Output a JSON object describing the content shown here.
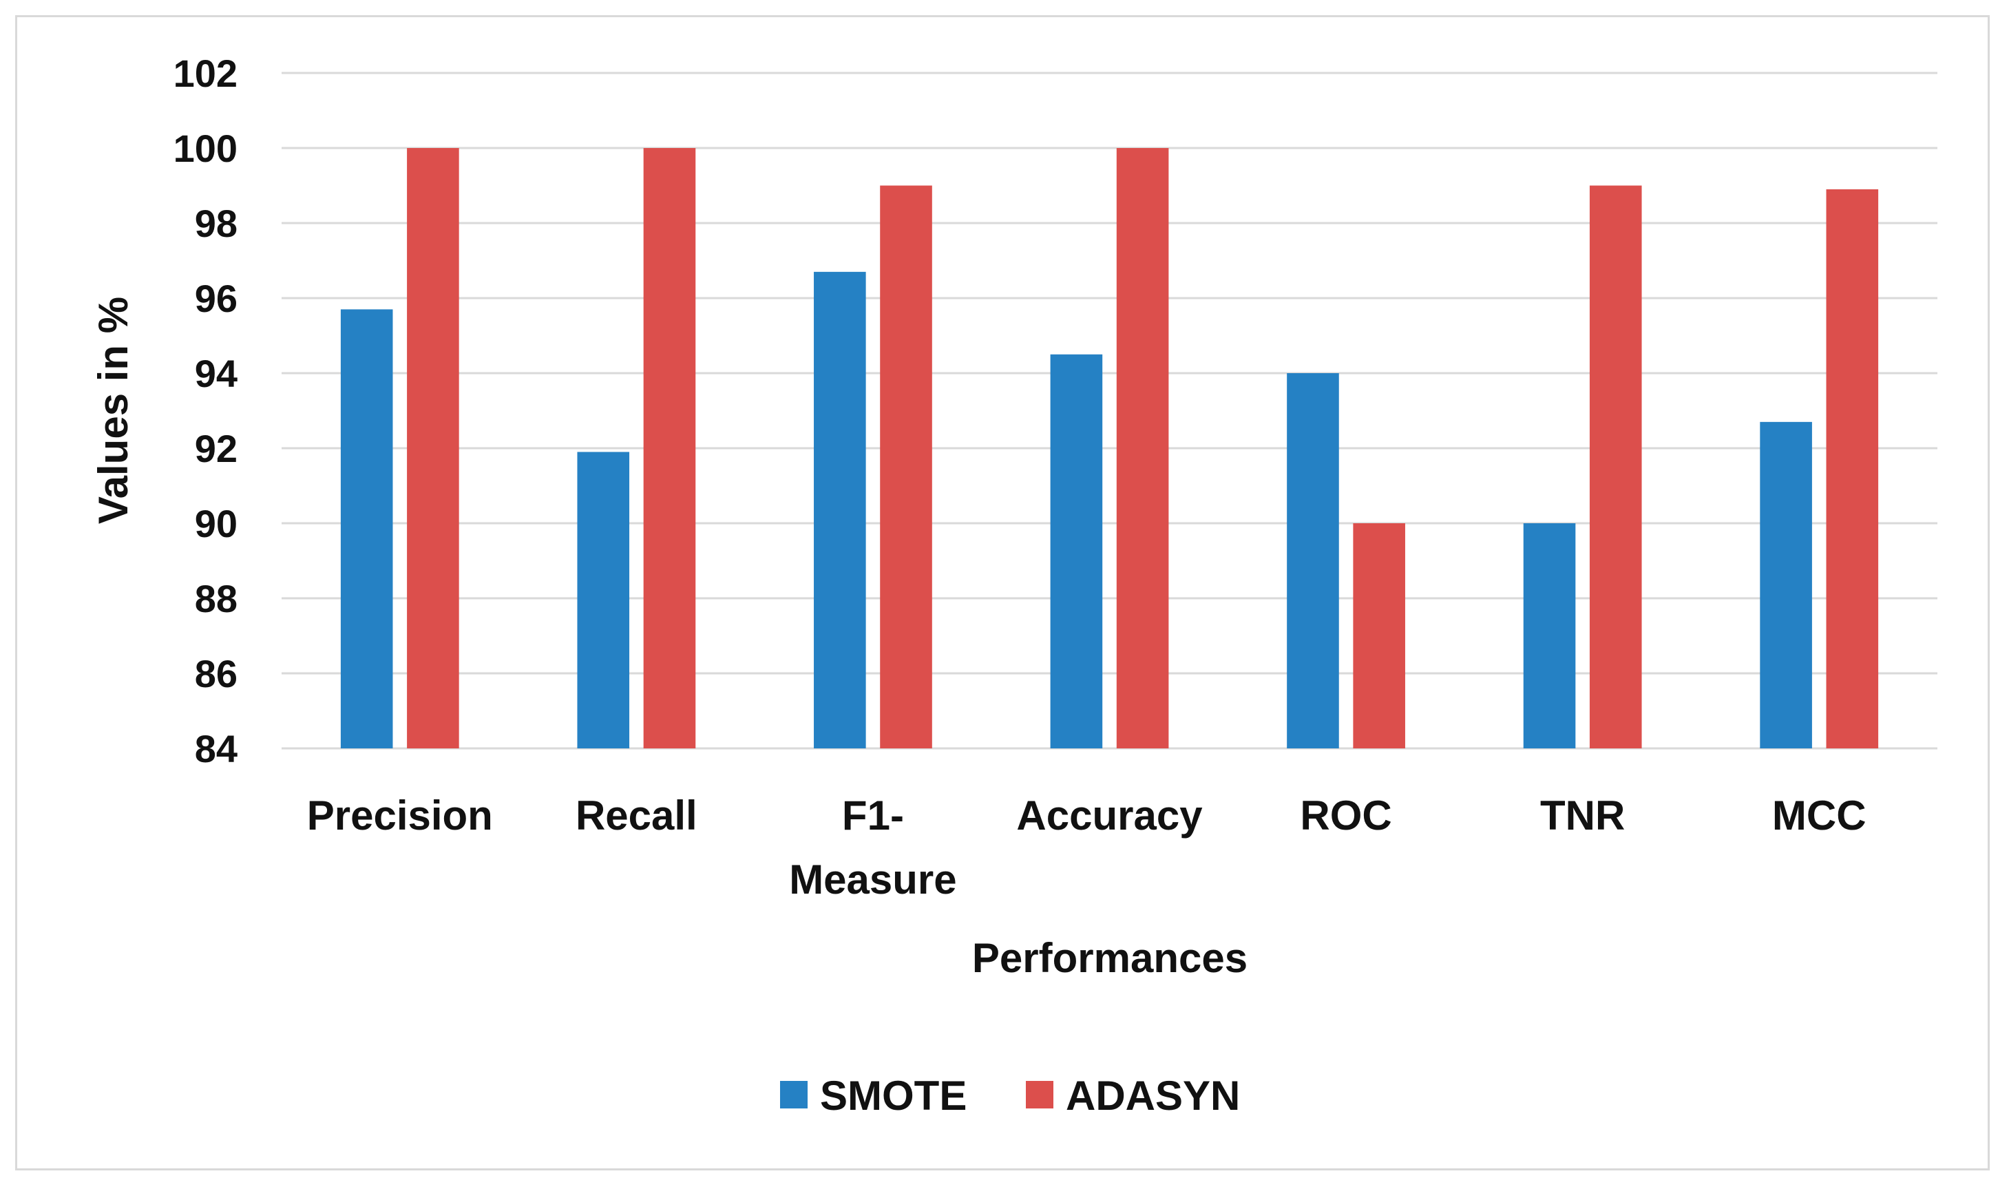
{
  "chart_data": {
    "type": "bar",
    "title": "",
    "xlabel": "Performances",
    "ylabel": "Values in %",
    "categories": [
      "Precision",
      "Recall",
      "F1-Measure",
      "Accuracy",
      "ROC",
      "TNR",
      "MCC"
    ],
    "category_label_lines": [
      [
        "Precision"
      ],
      [
        "Recall"
      ],
      [
        "F1-",
        "Measure"
      ],
      [
        "Accuracy"
      ],
      [
        "ROC"
      ],
      [
        "TNR"
      ],
      [
        "MCC"
      ]
    ],
    "series": [
      {
        "name": "SMOTE",
        "color": "#2581c4",
        "values": [
          95.7,
          91.9,
          96.7,
          94.5,
          94.0,
          90.0,
          92.7
        ]
      },
      {
        "name": "ADASYN",
        "color": "#dc4f4c",
        "values": [
          100,
          100,
          99.0,
          100,
          90.0,
          99.0,
          98.9
        ]
      }
    ],
    "ylim": [
      84,
      102
    ],
    "yticks": [
      84,
      86,
      88,
      90,
      92,
      94,
      96,
      98,
      100,
      102
    ],
    "grid": true,
    "legend_position": "bottom"
  }
}
